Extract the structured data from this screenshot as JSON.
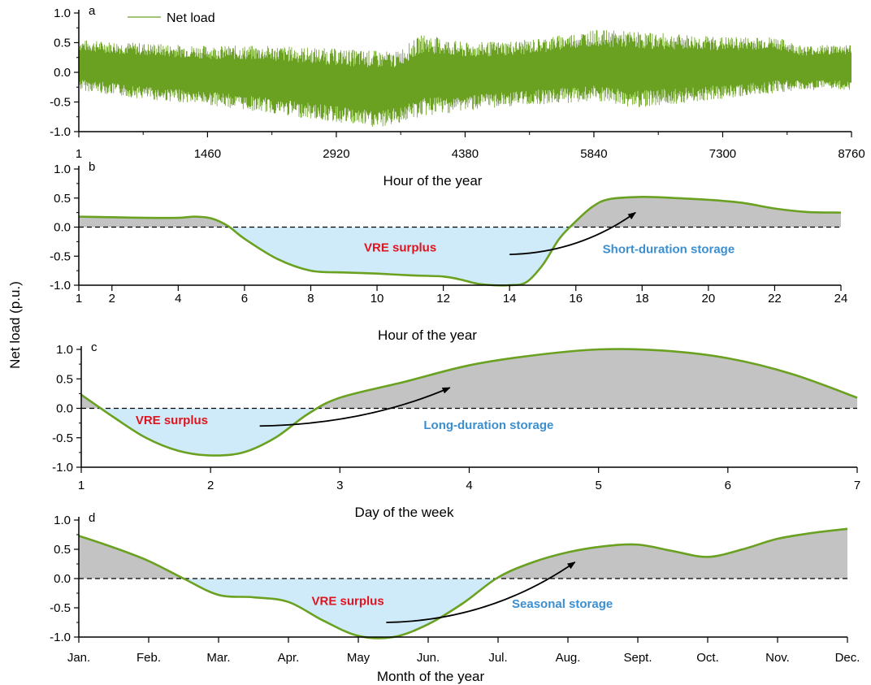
{
  "figure": {
    "ylabel": "Net load (p.u.)",
    "colors": {
      "line": "#6aa121",
      "surplus_fill": "#cfeaf8",
      "storage_fill": "#c3c3c3",
      "surplus_text": "#e0141e",
      "storage_text": "#3b8fd1",
      "zero_line": "#000000"
    }
  },
  "chart_data": [
    {
      "id": "a",
      "type": "line",
      "panel_label": "a",
      "xlabel": "Hour of the year",
      "ylabel": "Net load (p.u.)",
      "xlim": [
        1,
        8760
      ],
      "ylim": [
        -1.0,
        1.0
      ],
      "xticks": [
        1,
        1460,
        2920,
        4380,
        5840,
        7300,
        8760
      ],
      "yticks": [
        1.0,
        0.5,
        0.0,
        -0.5,
        -1.0
      ],
      "ytick_labels": [
        "1.0",
        "0.5",
        "0.0",
        "-0.5",
        "-1.0"
      ],
      "legend": {
        "label": "Net load",
        "position": "top-left"
      },
      "reference_line": {
        "y": 0.0,
        "style": "dashed"
      },
      "series": [
        {
          "name": "Net load",
          "description": "hourly net load, daily oscillation with seasonal envelope",
          "envelope_max": {
            "x": [
              1,
              700,
              1460,
              2200,
              2920,
              3600,
              3900,
              4380,
              5100,
              5840,
              6200,
              7300,
              7900,
              8200,
              8760
            ],
            "y": [
              0.55,
              0.5,
              0.45,
              0.45,
              0.4,
              0.35,
              0.65,
              0.5,
              0.55,
              0.72,
              0.7,
              0.6,
              0.6,
              0.45,
              0.48
            ]
          },
          "envelope_min": {
            "x": [
              1,
              700,
              1460,
              2200,
              2920,
              3400,
              3900,
              4380,
              5100,
              5840,
              6300,
              7300,
              7900,
              8200,
              8760
            ],
            "y": [
              -0.3,
              -0.45,
              -0.55,
              -0.7,
              -0.85,
              -0.95,
              -0.75,
              -0.65,
              -0.55,
              -0.5,
              -0.6,
              -0.45,
              -0.35,
              -0.3,
              -0.3
            ]
          }
        }
      ]
    },
    {
      "id": "b",
      "type": "area",
      "panel_label": "b",
      "xlabel": "Hour of the year",
      "xlim": [
        1,
        24
      ],
      "ylim": [
        -1.0,
        1.0
      ],
      "xticks": [
        1,
        2,
        4,
        6,
        8,
        10,
        12,
        14,
        16,
        18,
        20,
        22,
        24
      ],
      "yticks": [
        1.0,
        0.5,
        0.0,
        -0.5,
        -1.0
      ],
      "ytick_labels": [
        "1.0",
        "0.5",
        "0.0",
        "-0.5",
        "-1.0"
      ],
      "reference_line": {
        "y": 0.0,
        "style": "dashed"
      },
      "series": [
        {
          "x": [
            1,
            2,
            3,
            4,
            4.5,
            5,
            5.5,
            6,
            7,
            8,
            9,
            10,
            11,
            12,
            12.5,
            13,
            13.5,
            14,
            14.5,
            15,
            15.5,
            16,
            16.5,
            17,
            18,
            19,
            20,
            21,
            22,
            23,
            24
          ],
          "y": [
            0.18,
            0.17,
            0.16,
            0.16,
            0.18,
            0.15,
            0.02,
            -0.2,
            -0.55,
            -0.75,
            -0.78,
            -0.8,
            -0.83,
            -0.85,
            -0.9,
            -0.97,
            -1.0,
            -1.0,
            -0.95,
            -0.65,
            -0.2,
            0.1,
            0.35,
            0.48,
            0.52,
            0.5,
            0.47,
            0.42,
            0.32,
            0.26,
            0.25
          ]
        }
      ],
      "annotations": [
        {
          "text": "VRE surplus",
          "role": "surplus",
          "x": 10.7,
          "y": -0.42
        },
        {
          "text": "Short-duration storage",
          "role": "storage",
          "x": 18.8,
          "y": -0.45
        }
      ],
      "arrow": {
        "from": [
          14.0,
          -0.47
        ],
        "to": [
          17.8,
          0.25
        ]
      }
    },
    {
      "id": "c",
      "type": "area",
      "panel_label": "c",
      "xlabel": "Day of the week",
      "xlim": [
        1,
        7
      ],
      "ylim": [
        -1.0,
        1.0
      ],
      "xticks": [
        1,
        2,
        3,
        4,
        5,
        6,
        7
      ],
      "yticks": [
        1.0,
        0.5,
        0.0,
        -0.5,
        -1.0
      ],
      "ytick_labels": [
        "1.0",
        "0.5",
        "0.0",
        "-0.5",
        "-1.0"
      ],
      "reference_line": {
        "y": 0.0,
        "style": "dashed"
      },
      "series": [
        {
          "x": [
            1,
            1.25,
            1.5,
            1.75,
            2,
            2.25,
            2.5,
            2.75,
            3,
            3.5,
            4,
            4.5,
            5,
            5.5,
            6,
            6.5,
            7
          ],
          "y": [
            0.23,
            -0.15,
            -0.5,
            -0.72,
            -0.8,
            -0.75,
            -0.5,
            -0.1,
            0.18,
            0.45,
            0.73,
            0.9,
            1.0,
            0.98,
            0.85,
            0.58,
            0.18
          ]
        }
      ],
      "annotations": [
        {
          "text": "VRE surplus",
          "role": "surplus",
          "x": 1.7,
          "y": -0.27
        },
        {
          "text": "Long-duration storage",
          "role": "storage",
          "x": 4.15,
          "y": -0.35
        }
      ],
      "arrow": {
        "from": [
          2.38,
          -0.3
        ],
        "to": [
          3.85,
          0.35
        ]
      }
    },
    {
      "id": "d",
      "type": "area",
      "panel_label": "d",
      "xlabel": "Month of the year",
      "xlim": [
        0,
        11
      ],
      "ylim": [
        -1.0,
        1.0
      ],
      "xticks": [
        0,
        1,
        2,
        3,
        4,
        5,
        6,
        7,
        8,
        9,
        10,
        11
      ],
      "xtick_labels": [
        "Jan.",
        "Feb.",
        "Mar.",
        "Apr.",
        "May",
        "Jun.",
        "Jul.",
        "Aug.",
        "Sept.",
        "Oct.",
        "Nov.",
        "Dec."
      ],
      "yticks": [
        1.0,
        0.5,
        0.0,
        -0.5,
        -1.0
      ],
      "ytick_labels": [
        "1.0",
        "0.5",
        "0.0",
        "-0.5",
        "-1.0"
      ],
      "reference_line": {
        "y": 0.0,
        "style": "dashed"
      },
      "series": [
        {
          "x": [
            0,
            0.5,
            1,
            1.5,
            2,
            2.5,
            3,
            3.5,
            4,
            4.5,
            5,
            5.5,
            6,
            6.5,
            7,
            7.5,
            8,
            8.5,
            9,
            9.5,
            10,
            10.5,
            11
          ],
          "y": [
            0.73,
            0.53,
            0.3,
            0.0,
            -0.28,
            -0.32,
            -0.4,
            -0.72,
            -0.98,
            -1.0,
            -0.78,
            -0.42,
            0.02,
            0.28,
            0.45,
            0.55,
            0.58,
            0.47,
            0.37,
            0.5,
            0.68,
            0.78,
            0.85
          ]
        }
      ],
      "annotations": [
        {
          "text": "VRE surplus",
          "role": "surplus",
          "x": 3.85,
          "y": -0.45
        },
        {
          "text": "Seasonal storage",
          "role": "storage",
          "x": 6.92,
          "y": -0.5
        }
      ],
      "arrow": {
        "from": [
          4.4,
          -0.75
        ],
        "to": [
          7.1,
          0.28
        ]
      }
    }
  ]
}
